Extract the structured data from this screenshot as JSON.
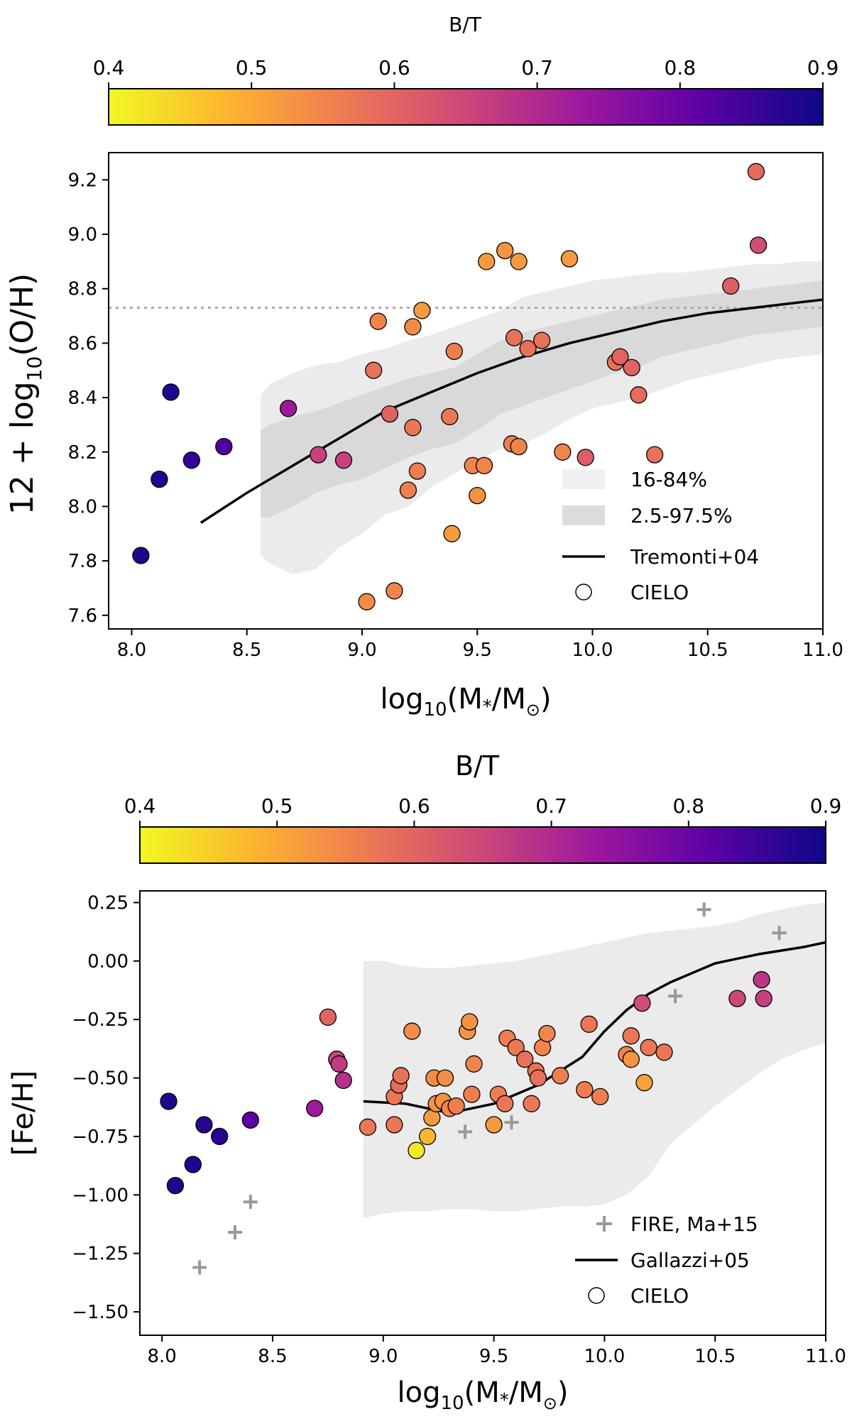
{
  "colors": {
    "colormap": [
      "#f0f921",
      "#fdb42f",
      "#ed7953",
      "#cc4778",
      "#9c179e",
      "#5c01a6",
      "#0d0887"
    ],
    "band_inner": "#d9d9d9",
    "band_outer": "#ebebeb",
    "fire_marker": "#999999",
    "solar_line": "#aaaaaa"
  },
  "chart_data": [
    {
      "type": "scatter",
      "panel": "top",
      "colorbar": {
        "title": "B/T",
        "range": [
          0.4,
          0.9
        ],
        "ticks": [
          0.4,
          0.5,
          0.6,
          0.7,
          0.8,
          0.9
        ],
        "tick_labels": [
          "0.4",
          "0.5",
          "0.6",
          "0.7",
          "0.8",
          "0.9"
        ]
      },
      "xlabel_text": "log",
      "xlabel_sub": "10",
      "xlabel_rest": "(M",
      "xlabel_star": "*",
      "xlabel_mid": "/M",
      "xlabel_sun": "⊙",
      "xlabel_end": ")",
      "ylabel_text": "12 + log",
      "ylabel_sub": "10",
      "ylabel_rest": "(O/H)",
      "xlim": [
        7.9,
        11.0
      ],
      "ylim": [
        7.55,
        9.3
      ],
      "xticks": [
        8.0,
        8.5,
        9.0,
        9.5,
        10.0,
        10.5,
        11.0
      ],
      "xtick_labels": [
        "8.0",
        "8.5",
        "9.0",
        "9.5",
        "10.0",
        "10.5",
        "11.0"
      ],
      "yticks": [
        7.6,
        7.8,
        8.0,
        8.2,
        8.4,
        8.6,
        8.8,
        9.0,
        9.2
      ],
      "ytick_labels": [
        "7.6",
        "7.8",
        "8.0",
        "8.2",
        "8.4",
        "8.6",
        "8.8",
        "9.0",
        "9.2"
      ],
      "solar_line_y": 8.73,
      "bands": {
        "outer": {
          "x": [
            8.56,
            8.6,
            8.7,
            8.8,
            8.9,
            9.0,
            9.1,
            9.2,
            9.3,
            9.4,
            9.5,
            9.6,
            9.7,
            9.8,
            9.9,
            10.0,
            10.1,
            10.2,
            10.3,
            10.4,
            10.5,
            10.6,
            10.7,
            10.8,
            10.9,
            11.0
          ],
          "upper": [
            8.41,
            8.45,
            8.49,
            8.52,
            8.53,
            8.56,
            8.58,
            8.61,
            8.63,
            8.66,
            8.69,
            8.72,
            8.77,
            8.79,
            8.81,
            8.83,
            8.84,
            8.85,
            8.86,
            8.86,
            8.87,
            8.88,
            8.89,
            8.89,
            8.9,
            8.9
          ],
          "lower": [
            7.82,
            7.79,
            7.75,
            7.77,
            7.85,
            7.9,
            7.97,
            8.0,
            8.07,
            8.12,
            8.17,
            8.21,
            8.23,
            8.27,
            8.32,
            8.36,
            8.38,
            8.4,
            8.43,
            8.46,
            8.48,
            8.5,
            8.52,
            8.54,
            8.55,
            8.56
          ]
        },
        "inner": {
          "x": [
            8.56,
            8.6,
            8.7,
            8.8,
            8.9,
            9.0,
            9.1,
            9.2,
            9.3,
            9.4,
            9.5,
            9.6,
            9.7,
            9.8,
            9.9,
            10.0,
            10.1,
            10.2,
            10.3,
            10.4,
            10.5,
            10.6,
            10.7,
            10.8,
            10.9,
            11.0
          ],
          "upper": [
            8.28,
            8.3,
            8.33,
            8.35,
            8.38,
            8.41,
            8.44,
            8.47,
            8.49,
            8.51,
            8.56,
            8.61,
            8.64,
            8.66,
            8.68,
            8.7,
            8.72,
            8.74,
            8.76,
            8.77,
            8.78,
            8.79,
            8.8,
            8.81,
            8.82,
            8.83
          ],
          "lower": [
            7.96,
            7.96,
            8.0,
            8.05,
            8.08,
            8.1,
            8.14,
            8.18,
            8.21,
            8.23,
            8.28,
            8.34,
            8.37,
            8.4,
            8.43,
            8.46,
            8.49,
            8.51,
            8.55,
            8.57,
            8.59,
            8.61,
            8.63,
            8.64,
            8.65,
            8.66
          ]
        }
      },
      "relation_line": {
        "name": "Tremonti+04",
        "x": [
          8.3,
          8.5,
          8.7,
          8.9,
          9.1,
          9.3,
          9.5,
          9.7,
          9.9,
          10.1,
          10.3,
          10.5,
          10.7,
          10.9,
          11.0
        ],
        "y": [
          7.94,
          8.05,
          8.15,
          8.25,
          8.35,
          8.42,
          8.49,
          8.55,
          8.6,
          8.64,
          8.68,
          8.71,
          8.73,
          8.75,
          8.76
        ]
      },
      "points": [
        {
          "x": 8.04,
          "y": 7.82,
          "bt": 0.88
        },
        {
          "x": 8.12,
          "y": 8.1,
          "bt": 0.88
        },
        {
          "x": 8.17,
          "y": 8.42,
          "bt": 0.88
        },
        {
          "x": 8.26,
          "y": 8.17,
          "bt": 0.86
        },
        {
          "x": 8.4,
          "y": 8.22,
          "bt": 0.83
        },
        {
          "x": 8.68,
          "y": 8.36,
          "bt": 0.73
        },
        {
          "x": 8.81,
          "y": 8.19,
          "bt": 0.66
        },
        {
          "x": 8.92,
          "y": 8.17,
          "bt": 0.66
        },
        {
          "x": 9.02,
          "y": 7.65,
          "bt": 0.54
        },
        {
          "x": 9.05,
          "y": 8.5,
          "bt": 0.58
        },
        {
          "x": 9.07,
          "y": 8.68,
          "bt": 0.55
        },
        {
          "x": 9.12,
          "y": 8.34,
          "bt": 0.6
        },
        {
          "x": 9.14,
          "y": 7.69,
          "bt": 0.55
        },
        {
          "x": 9.2,
          "y": 8.06,
          "bt": 0.56
        },
        {
          "x": 9.22,
          "y": 8.29,
          "bt": 0.57
        },
        {
          "x": 9.22,
          "y": 8.66,
          "bt": 0.54
        },
        {
          "x": 9.24,
          "y": 8.13,
          "bt": 0.56
        },
        {
          "x": 9.26,
          "y": 8.72,
          "bt": 0.52
        },
        {
          "x": 9.38,
          "y": 8.33,
          "bt": 0.57
        },
        {
          "x": 9.39,
          "y": 7.9,
          "bt": 0.52
        },
        {
          "x": 9.4,
          "y": 8.57,
          "bt": 0.56
        },
        {
          "x": 9.48,
          "y": 8.15,
          "bt": 0.55
        },
        {
          "x": 9.5,
          "y": 8.04,
          "bt": 0.53
        },
        {
          "x": 9.53,
          "y": 8.15,
          "bt": 0.55
        },
        {
          "x": 9.54,
          "y": 8.9,
          "bt": 0.52
        },
        {
          "x": 9.62,
          "y": 8.94,
          "bt": 0.53
        },
        {
          "x": 9.65,
          "y": 8.23,
          "bt": 0.56
        },
        {
          "x": 9.66,
          "y": 8.62,
          "bt": 0.58
        },
        {
          "x": 9.68,
          "y": 8.22,
          "bt": 0.55
        },
        {
          "x": 9.68,
          "y": 8.9,
          "bt": 0.52
        },
        {
          "x": 9.72,
          "y": 8.58,
          "bt": 0.58
        },
        {
          "x": 9.78,
          "y": 8.61,
          "bt": 0.58
        },
        {
          "x": 9.87,
          "y": 8.2,
          "bt": 0.55
        },
        {
          "x": 9.9,
          "y": 8.91,
          "bt": 0.52
        },
        {
          "x": 9.97,
          "y": 8.18,
          "bt": 0.61
        },
        {
          "x": 10.1,
          "y": 8.53,
          "bt": 0.58
        },
        {
          "x": 10.12,
          "y": 8.55,
          "bt": 0.6
        },
        {
          "x": 10.17,
          "y": 8.51,
          "bt": 0.6
        },
        {
          "x": 10.2,
          "y": 8.41,
          "bt": 0.59
        },
        {
          "x": 10.27,
          "y": 8.19,
          "bt": 0.58
        },
        {
          "x": 10.6,
          "y": 8.81,
          "bt": 0.61
        },
        {
          "x": 10.71,
          "y": 9.23,
          "bt": 0.59
        },
        {
          "x": 10.72,
          "y": 8.96,
          "bt": 0.64
        }
      ],
      "legend": {
        "position": "lower right",
        "items": [
          {
            "label": "16-84%",
            "kind": "band_light"
          },
          {
            "label": "2.5-97.5%",
            "kind": "band_dark"
          },
          {
            "label": "Tremonti+04",
            "kind": "line"
          },
          {
            "label": "CIELO",
            "kind": "circle"
          }
        ]
      }
    },
    {
      "type": "scatter",
      "panel": "bottom",
      "colorbar": {
        "title": "B/T",
        "range": [
          0.4,
          0.9
        ],
        "ticks": [
          0.4,
          0.5,
          0.6,
          0.7,
          0.8,
          0.9
        ],
        "tick_labels": [
          "0.4",
          "0.5",
          "0.6",
          "0.7",
          "0.8",
          "0.9"
        ]
      },
      "xlabel_text": "log",
      "xlabel_sub": "10",
      "xlabel_rest": "(M",
      "xlabel_star": "*",
      "xlabel_mid": "/M",
      "xlabel_sun": "⊙",
      "xlabel_end": ")",
      "ylabel_text": "[Fe/H]",
      "xlim": [
        7.9,
        11.0
      ],
      "ylim": [
        -1.6,
        0.3
      ],
      "xticks": [
        8.0,
        8.5,
        9.0,
        9.5,
        10.0,
        10.5,
        11.0
      ],
      "xtick_labels": [
        "8.0",
        "8.5",
        "9.0",
        "9.5",
        "10.0",
        "10.5",
        "11.0"
      ],
      "yticks": [
        -1.5,
        -1.25,
        -1.0,
        -0.75,
        -0.5,
        -0.25,
        0.0,
        0.25
      ],
      "ytick_labels": [
        "−1.50",
        "−1.25",
        "−1.00",
        "−0.75",
        "−0.50",
        "−0.25",
        "0.00",
        "0.25"
      ],
      "band": {
        "x": [
          8.91,
          9.0,
          9.1,
          9.2,
          9.3,
          9.4,
          9.5,
          9.6,
          9.7,
          9.8,
          9.9,
          10.0,
          10.1,
          10.2,
          10.3,
          10.4,
          10.5,
          10.6,
          10.7,
          10.8,
          10.9,
          11.0
        ],
        "upper": [
          0.0,
          0.0,
          -0.02,
          -0.03,
          -0.03,
          -0.02,
          -0.01,
          0.0,
          0.02,
          0.04,
          0.06,
          0.08,
          0.1,
          0.12,
          0.13,
          0.14,
          0.15,
          0.17,
          0.2,
          0.22,
          0.24,
          0.25
        ],
        "lower": [
          -1.1,
          -1.08,
          -1.07,
          -1.07,
          -1.06,
          -1.06,
          -1.07,
          -1.07,
          -1.06,
          -1.05,
          -1.05,
          -1.04,
          -1.0,
          -0.92,
          -0.78,
          -0.7,
          -0.62,
          -0.55,
          -0.48,
          -0.42,
          -0.38,
          -0.35
        ]
      },
      "relation_line": {
        "name": "Gallazzi+05",
        "x": [
          8.91,
          9.1,
          9.3,
          9.5,
          9.7,
          9.9,
          10.0,
          10.1,
          10.2,
          10.3,
          10.4,
          10.5,
          10.7,
          10.9,
          11.0
        ],
        "y": [
          -0.6,
          -0.61,
          -0.65,
          -0.61,
          -0.53,
          -0.41,
          -0.3,
          -0.21,
          -0.14,
          -0.09,
          -0.05,
          -0.01,
          0.03,
          0.06,
          0.08
        ]
      },
      "fire_points": {
        "name": "FIRE, Ma+15",
        "x": [
          8.17,
          8.33,
          8.4,
          9.37,
          9.58,
          10.32,
          10.45,
          10.79
        ],
        "y": [
          -1.31,
          -1.16,
          -1.03,
          -0.73,
          -0.69,
          -0.15,
          0.22,
          0.12
        ]
      },
      "points": [
        {
          "x": 8.03,
          "y": -0.6,
          "bt": 0.88
        },
        {
          "x": 8.06,
          "y": -0.96,
          "bt": 0.88
        },
        {
          "x": 8.14,
          "y": -0.87,
          "bt": 0.88
        },
        {
          "x": 8.19,
          "y": -0.7,
          "bt": 0.87
        },
        {
          "x": 8.26,
          "y": -0.75,
          "bt": 0.87
        },
        {
          "x": 8.4,
          "y": -0.68,
          "bt": 0.82
        },
        {
          "x": 8.69,
          "y": -0.63,
          "bt": 0.73
        },
        {
          "x": 8.75,
          "y": -0.24,
          "bt": 0.6
        },
        {
          "x": 8.79,
          "y": -0.42,
          "bt": 0.65
        },
        {
          "x": 8.8,
          "y": -0.44,
          "bt": 0.67
        },
        {
          "x": 8.82,
          "y": -0.51,
          "bt": 0.69
        },
        {
          "x": 8.93,
          "y": -0.71,
          "bt": 0.57
        },
        {
          "x": 9.05,
          "y": -0.7,
          "bt": 0.57
        },
        {
          "x": 9.05,
          "y": -0.58,
          "bt": 0.57
        },
        {
          "x": 9.07,
          "y": -0.53,
          "bt": 0.59
        },
        {
          "x": 9.08,
          "y": -0.49,
          "bt": 0.58
        },
        {
          "x": 9.13,
          "y": -0.3,
          "bt": 0.54
        },
        {
          "x": 9.15,
          "y": -0.81,
          "bt": 0.42
        },
        {
          "x": 9.2,
          "y": -0.75,
          "bt": 0.48
        },
        {
          "x": 9.22,
          "y": -0.67,
          "bt": 0.52
        },
        {
          "x": 9.23,
          "y": -0.5,
          "bt": 0.54
        },
        {
          "x": 9.24,
          "y": -0.61,
          "bt": 0.53
        },
        {
          "x": 9.27,
          "y": -0.6,
          "bt": 0.53
        },
        {
          "x": 9.28,
          "y": -0.5,
          "bt": 0.54
        },
        {
          "x": 9.3,
          "y": -0.63,
          "bt": 0.55
        },
        {
          "x": 9.33,
          "y": -0.62,
          "bt": 0.56
        },
        {
          "x": 9.38,
          "y": -0.3,
          "bt": 0.53
        },
        {
          "x": 9.39,
          "y": -0.26,
          "bt": 0.53
        },
        {
          "x": 9.4,
          "y": -0.57,
          "bt": 0.56
        },
        {
          "x": 9.41,
          "y": -0.44,
          "bt": 0.55
        },
        {
          "x": 9.5,
          "y": -0.7,
          "bt": 0.52
        },
        {
          "x": 9.52,
          "y": -0.57,
          "bt": 0.56
        },
        {
          "x": 9.55,
          "y": -0.61,
          "bt": 0.57
        },
        {
          "x": 9.56,
          "y": -0.33,
          "bt": 0.56
        },
        {
          "x": 9.6,
          "y": -0.37,
          "bt": 0.57
        },
        {
          "x": 9.64,
          "y": -0.42,
          "bt": 0.58
        },
        {
          "x": 9.67,
          "y": -0.61,
          "bt": 0.57
        },
        {
          "x": 9.69,
          "y": -0.47,
          "bt": 0.58
        },
        {
          "x": 9.7,
          "y": -0.5,
          "bt": 0.58
        },
        {
          "x": 9.72,
          "y": -0.37,
          "bt": 0.55
        },
        {
          "x": 9.74,
          "y": -0.31,
          "bt": 0.55
        },
        {
          "x": 9.8,
          "y": -0.49,
          "bt": 0.56
        },
        {
          "x": 9.91,
          "y": -0.55,
          "bt": 0.56
        },
        {
          "x": 9.93,
          "y": -0.27,
          "bt": 0.57
        },
        {
          "x": 9.98,
          "y": -0.58,
          "bt": 0.56
        },
        {
          "x": 10.1,
          "y": -0.4,
          "bt": 0.55
        },
        {
          "x": 10.12,
          "y": -0.42,
          "bt": 0.53
        },
        {
          "x": 10.12,
          "y": -0.32,
          "bt": 0.57
        },
        {
          "x": 10.17,
          "y": -0.18,
          "bt": 0.64
        },
        {
          "x": 10.18,
          "y": -0.52,
          "bt": 0.51
        },
        {
          "x": 10.2,
          "y": -0.37,
          "bt": 0.57
        },
        {
          "x": 10.27,
          "y": -0.39,
          "bt": 0.57
        },
        {
          "x": 10.6,
          "y": -0.16,
          "bt": 0.65
        },
        {
          "x": 10.71,
          "y": -0.08,
          "bt": 0.68
        },
        {
          "x": 10.72,
          "y": -0.16,
          "bt": 0.66
        }
      ],
      "legend": {
        "position": "lower right",
        "items": [
          {
            "label": "FIRE, Ma+15",
            "kind": "plus"
          },
          {
            "label": "Gallazzi+05",
            "kind": "line"
          },
          {
            "label": "CIELO",
            "kind": "circle"
          }
        ]
      }
    }
  ]
}
